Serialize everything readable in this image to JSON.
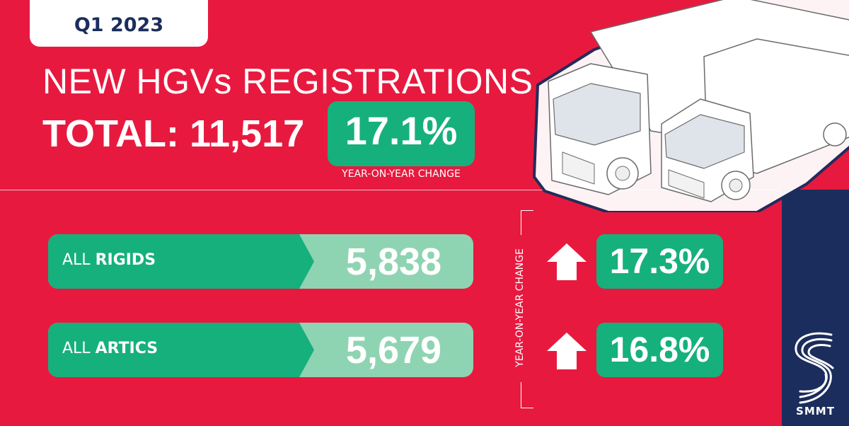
{
  "period": "Q1 2023",
  "title": "NEW HGVs REGISTRATIONS",
  "total": {
    "label": "TOTAL: 11,517",
    "change_pct": "17.1%",
    "change_caption": "YEAR-ON-YEAR CHANGE"
  },
  "side_caption": "YEAR-ON-YEAR CHANGE",
  "rows": [
    {
      "prefix": "ALL ",
      "name": "RIGIDS",
      "value": "5,838",
      "change": "17.3%",
      "direction": "up"
    },
    {
      "prefix": "ALL ",
      "name": "ARTICS",
      "value": "5,679",
      "change": "16.8%",
      "direction": "up"
    }
  ],
  "brand": {
    "name": "SMMT"
  },
  "colors": {
    "background": "#e8193f",
    "accent_green": "#16b07c",
    "light_green": "#8fd4b2",
    "navy": "#1b2d5c",
    "white": "#ffffff"
  },
  "icons": [
    "up-arrow-icon",
    "truck-illustration",
    "smmt-logo-icon"
  ]
}
